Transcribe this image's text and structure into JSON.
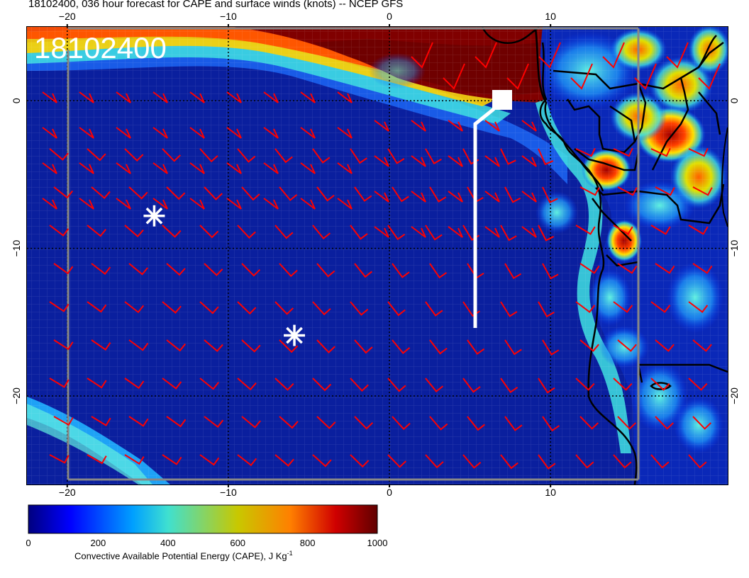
{
  "title": "18102400, 036 hour forecast for CAPE and surface winds (knots) -- NCEP GFS",
  "stamp": "18102400",
  "map": {
    "lon_range": [
      -22.5,
      21
    ],
    "lat_range": [
      -26,
      5
    ],
    "lon_ticks": [
      {
        "value": -20,
        "label": "−20"
      },
      {
        "value": -10,
        "label": "−10"
      },
      {
        "value": 0,
        "label": "0"
      },
      {
        "value": 10,
        "label": "10"
      }
    ],
    "lat_ticks": [
      {
        "value": 0,
        "label": "0"
      },
      {
        "value": -10,
        "label": "−10"
      },
      {
        "value": -20,
        "label": "−20"
      }
    ],
    "markers": [
      {
        "lon": -14.6,
        "lat": -7.8,
        "symbol": "asterisk"
      },
      {
        "lon": -5.9,
        "lat": -15.9,
        "symbol": "asterisk"
      }
    ]
  },
  "colorbar": {
    "label": "Convective Available Potential Energy (CAPE), J Kg",
    "unit_exponent": "-1",
    "ticks": [
      {
        "value": 0,
        "label": "0"
      },
      {
        "value": 200,
        "label": "200"
      },
      {
        "value": 400,
        "label": "400"
      },
      {
        "value": 600,
        "label": "600"
      },
      {
        "value": 800,
        "label": "800"
      },
      {
        "value": 1000,
        "label": "1000"
      }
    ],
    "range": [
      0,
      1000
    ],
    "colors": [
      "#00007f",
      "#0000ff",
      "#00a0ff",
      "#3fe0d0",
      "#c8c800",
      "#ff8000",
      "#d00000",
      "#600000"
    ]
  },
  "colors": {
    "barb": "#ff0000",
    "ocean": "#0a1f9e",
    "track": "#ffffff"
  }
}
